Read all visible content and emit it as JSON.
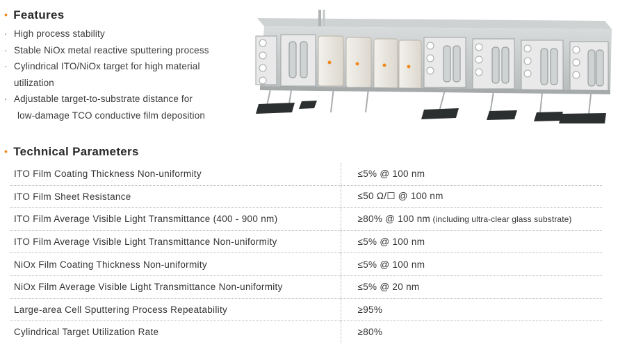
{
  "features": {
    "title": "Features",
    "items": [
      [
        "High process stability"
      ],
      [
        "Stable NiOx metal reactive sputtering process"
      ],
      [
        "Cylindrical ITO/NiOx target for high material",
        "utilization"
      ],
      [
        "Adjustable target-to-substrate distance for",
        "low-damage TCO conductive film deposition"
      ]
    ]
  },
  "parameters": {
    "title": "Technical Parameters",
    "rows": [
      {
        "name": "ITO Film Coating Thickness Non-uniformity",
        "value": "≤5% @ 100 nm",
        "note": ""
      },
      {
        "name": "ITO Film Sheet Resistance",
        "value": "≤50 Ω/☐ @ 100 nm",
        "note": ""
      },
      {
        "name": "ITO Film Average Visible Light Transmittance (400 - 900 nm)",
        "value": "≥80% @ 100 nm",
        "note": " (including ultra-clear glass substrate)"
      },
      {
        "name": "ITO Film Average Visible Light Transmittance Non-uniformity",
        "value": "≤5% @ 100 nm",
        "note": ""
      },
      {
        "name": "NiOx Film Coating Thickness Non-uniformity",
        "value": "≤5% @ 100 nm",
        "note": ""
      },
      {
        "name": "NiOx Film Average Visible Light Transmittance Non-uniformity",
        "value": "≤5% @ 20 nm",
        "note": ""
      },
      {
        "name": "Large-area Cell Sputtering Process Repeatability",
        "value": "≥95%",
        "note": ""
      },
      {
        "name": "Cylindrical Target Utilization Rate",
        "value": "≥80%",
        "note": ""
      }
    ]
  },
  "colors": {
    "accent": "#f08a1e",
    "text": "#2b2b2b",
    "divider": "#b5b5b5"
  }
}
